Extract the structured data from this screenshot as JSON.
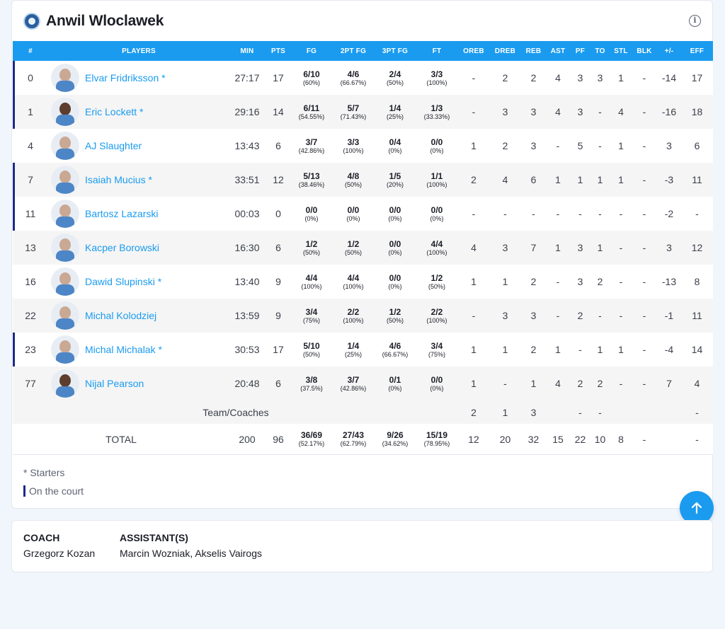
{
  "team": {
    "name": "Anwil Wloclawek"
  },
  "columns": [
    "#",
    "PLAYERS",
    "MIN",
    "PTS",
    "FG",
    "2PT FG",
    "3PT FG",
    "FT",
    "OREB",
    "DREB",
    "REB",
    "AST",
    "PF",
    "TO",
    "STL",
    "BLK",
    "+/-",
    "EFF"
  ],
  "players": [
    {
      "num": "0",
      "name": "Elvar Fridriksson *",
      "on_court": true,
      "min": "27:17",
      "pts": "17",
      "fg": "6/10",
      "fg_p": "(60%)",
      "fg2": "4/6",
      "fg2_p": "(66.67%)",
      "fg3": "2/4",
      "fg3_p": "(50%)",
      "ft": "3/3",
      "ft_p": "(100%)",
      "oreb": "-",
      "dreb": "2",
      "reb": "2",
      "ast": "4",
      "pf": "3",
      "to": "3",
      "stl": "1",
      "blk": "-",
      "pm": "-14",
      "eff": "17"
    },
    {
      "num": "1",
      "name": "Eric Lockett *",
      "on_court": true,
      "min": "29:16",
      "pts": "14",
      "fg": "6/11",
      "fg_p": "(54.55%)",
      "fg2": "5/7",
      "fg2_p": "(71.43%)",
      "fg3": "1/4",
      "fg3_p": "(25%)",
      "ft": "1/3",
      "ft_p": "(33.33%)",
      "oreb": "-",
      "dreb": "3",
      "reb": "3",
      "ast": "4",
      "pf": "3",
      "to": "-",
      "stl": "4",
      "blk": "-",
      "pm": "-16",
      "eff": "18"
    },
    {
      "num": "4",
      "name": "AJ Slaughter",
      "on_court": false,
      "min": "13:43",
      "pts": "6",
      "fg": "3/7",
      "fg_p": "(42.86%)",
      "fg2": "3/3",
      "fg2_p": "(100%)",
      "fg3": "0/4",
      "fg3_p": "(0%)",
      "ft": "0/0",
      "ft_p": "(0%)",
      "oreb": "1",
      "dreb": "2",
      "reb": "3",
      "ast": "-",
      "pf": "5",
      "to": "-",
      "stl": "1",
      "blk": "-",
      "pm": "3",
      "eff": "6"
    },
    {
      "num": "7",
      "name": "Isaiah Mucius *",
      "on_court": true,
      "min": "33:51",
      "pts": "12",
      "fg": "5/13",
      "fg_p": "(38.46%)",
      "fg2": "4/8",
      "fg2_p": "(50%)",
      "fg3": "1/5",
      "fg3_p": "(20%)",
      "ft": "1/1",
      "ft_p": "(100%)",
      "oreb": "2",
      "dreb": "4",
      "reb": "6",
      "ast": "1",
      "pf": "1",
      "to": "1",
      "stl": "1",
      "blk": "-",
      "pm": "-3",
      "eff": "11"
    },
    {
      "num": "11",
      "name": "Bartosz Lazarski",
      "on_court": true,
      "min": "00:03",
      "pts": "0",
      "fg": "0/0",
      "fg_p": "(0%)",
      "fg2": "0/0",
      "fg2_p": "(0%)",
      "fg3": "0/0",
      "fg3_p": "(0%)",
      "ft": "0/0",
      "ft_p": "(0%)",
      "oreb": "-",
      "dreb": "-",
      "reb": "-",
      "ast": "-",
      "pf": "-",
      "to": "-",
      "stl": "-",
      "blk": "-",
      "pm": "-2",
      "eff": "-"
    },
    {
      "num": "13",
      "name": "Kacper Borowski",
      "on_court": false,
      "min": "16:30",
      "pts": "6",
      "fg": "1/2",
      "fg_p": "(50%)",
      "fg2": "1/2",
      "fg2_p": "(50%)",
      "fg3": "0/0",
      "fg3_p": "(0%)",
      "ft": "4/4",
      "ft_p": "(100%)",
      "oreb": "4",
      "dreb": "3",
      "reb": "7",
      "ast": "1",
      "pf": "3",
      "to": "1",
      "stl": "-",
      "blk": "-",
      "pm": "3",
      "eff": "12"
    },
    {
      "num": "16",
      "name": "Dawid Slupinski *",
      "on_court": false,
      "min": "13:40",
      "pts": "9",
      "fg": "4/4",
      "fg_p": "(100%)",
      "fg2": "4/4",
      "fg2_p": "(100%)",
      "fg3": "0/0",
      "fg3_p": "(0%)",
      "ft": "1/2",
      "ft_p": "(50%)",
      "oreb": "1",
      "dreb": "1",
      "reb": "2",
      "ast": "-",
      "pf": "3",
      "to": "2",
      "stl": "-",
      "blk": "-",
      "pm": "-13",
      "eff": "8"
    },
    {
      "num": "22",
      "name": "Michal Kolodziej",
      "on_court": false,
      "min": "13:59",
      "pts": "9",
      "fg": "3/4",
      "fg_p": "(75%)",
      "fg2": "2/2",
      "fg2_p": "(100%)",
      "fg3": "1/2",
      "fg3_p": "(50%)",
      "ft": "2/2",
      "ft_p": "(100%)",
      "oreb": "-",
      "dreb": "3",
      "reb": "3",
      "ast": "-",
      "pf": "2",
      "to": "-",
      "stl": "-",
      "blk": "-",
      "pm": "-1",
      "eff": "11"
    },
    {
      "num": "23",
      "name": "Michal Michalak *",
      "on_court": true,
      "min": "30:53",
      "pts": "17",
      "fg": "5/10",
      "fg_p": "(50%)",
      "fg2": "1/4",
      "fg2_p": "(25%)",
      "fg3": "4/6",
      "fg3_p": "(66.67%)",
      "ft": "3/4",
      "ft_p": "(75%)",
      "oreb": "1",
      "dreb": "1",
      "reb": "2",
      "ast": "1",
      "pf": "-",
      "to": "1",
      "stl": "1",
      "blk": "-",
      "pm": "-4",
      "eff": "14"
    },
    {
      "num": "77",
      "name": "Nijal Pearson",
      "on_court": false,
      "min": "20:48",
      "pts": "6",
      "fg": "3/8",
      "fg_p": "(37.5%)",
      "fg2": "3/7",
      "fg2_p": "(42.86%)",
      "fg3": "0/1",
      "fg3_p": "(0%)",
      "ft": "0/0",
      "ft_p": "(0%)",
      "oreb": "1",
      "dreb": "-",
      "reb": "1",
      "ast": "4",
      "pf": "2",
      "to": "2",
      "stl": "-",
      "blk": "-",
      "pm": "7",
      "eff": "4"
    }
  ],
  "team_row": {
    "label": "Team/Coaches",
    "oreb": "2",
    "dreb": "1",
    "reb": "3",
    "pf": "-",
    "to": "-",
    "eff": "-"
  },
  "total_row": {
    "label": "TOTAL",
    "min": "200",
    "pts": "96",
    "fg": "36/69",
    "fg_p": "(52.17%)",
    "fg2": "27/43",
    "fg2_p": "(62.79%)",
    "fg3": "9/26",
    "fg3_p": "(34.62%)",
    "ft": "15/19",
    "ft_p": "(78.95%)",
    "oreb": "12",
    "dreb": "20",
    "reb": "32",
    "ast": "15",
    "pf": "22",
    "to": "10",
    "stl": "8",
    "blk": "-",
    "eff": "-"
  },
  "legend": {
    "starters": "* Starters",
    "on_court": "On the court"
  },
  "coach": {
    "coach_label": "COACH",
    "coach_name": "Grzegorz Kozan",
    "assistants_label": "ASSISTANT(S)",
    "assistants": "Marcin Wozniak, Akselis Vairogs"
  },
  "icons": {
    "info": "info-icon",
    "scroll_top": "arrow-up-icon"
  },
  "colors": {
    "accent": "#1a9bef",
    "on_court_bar": "#1b2a8a",
    "background": "#f1f6fc"
  }
}
